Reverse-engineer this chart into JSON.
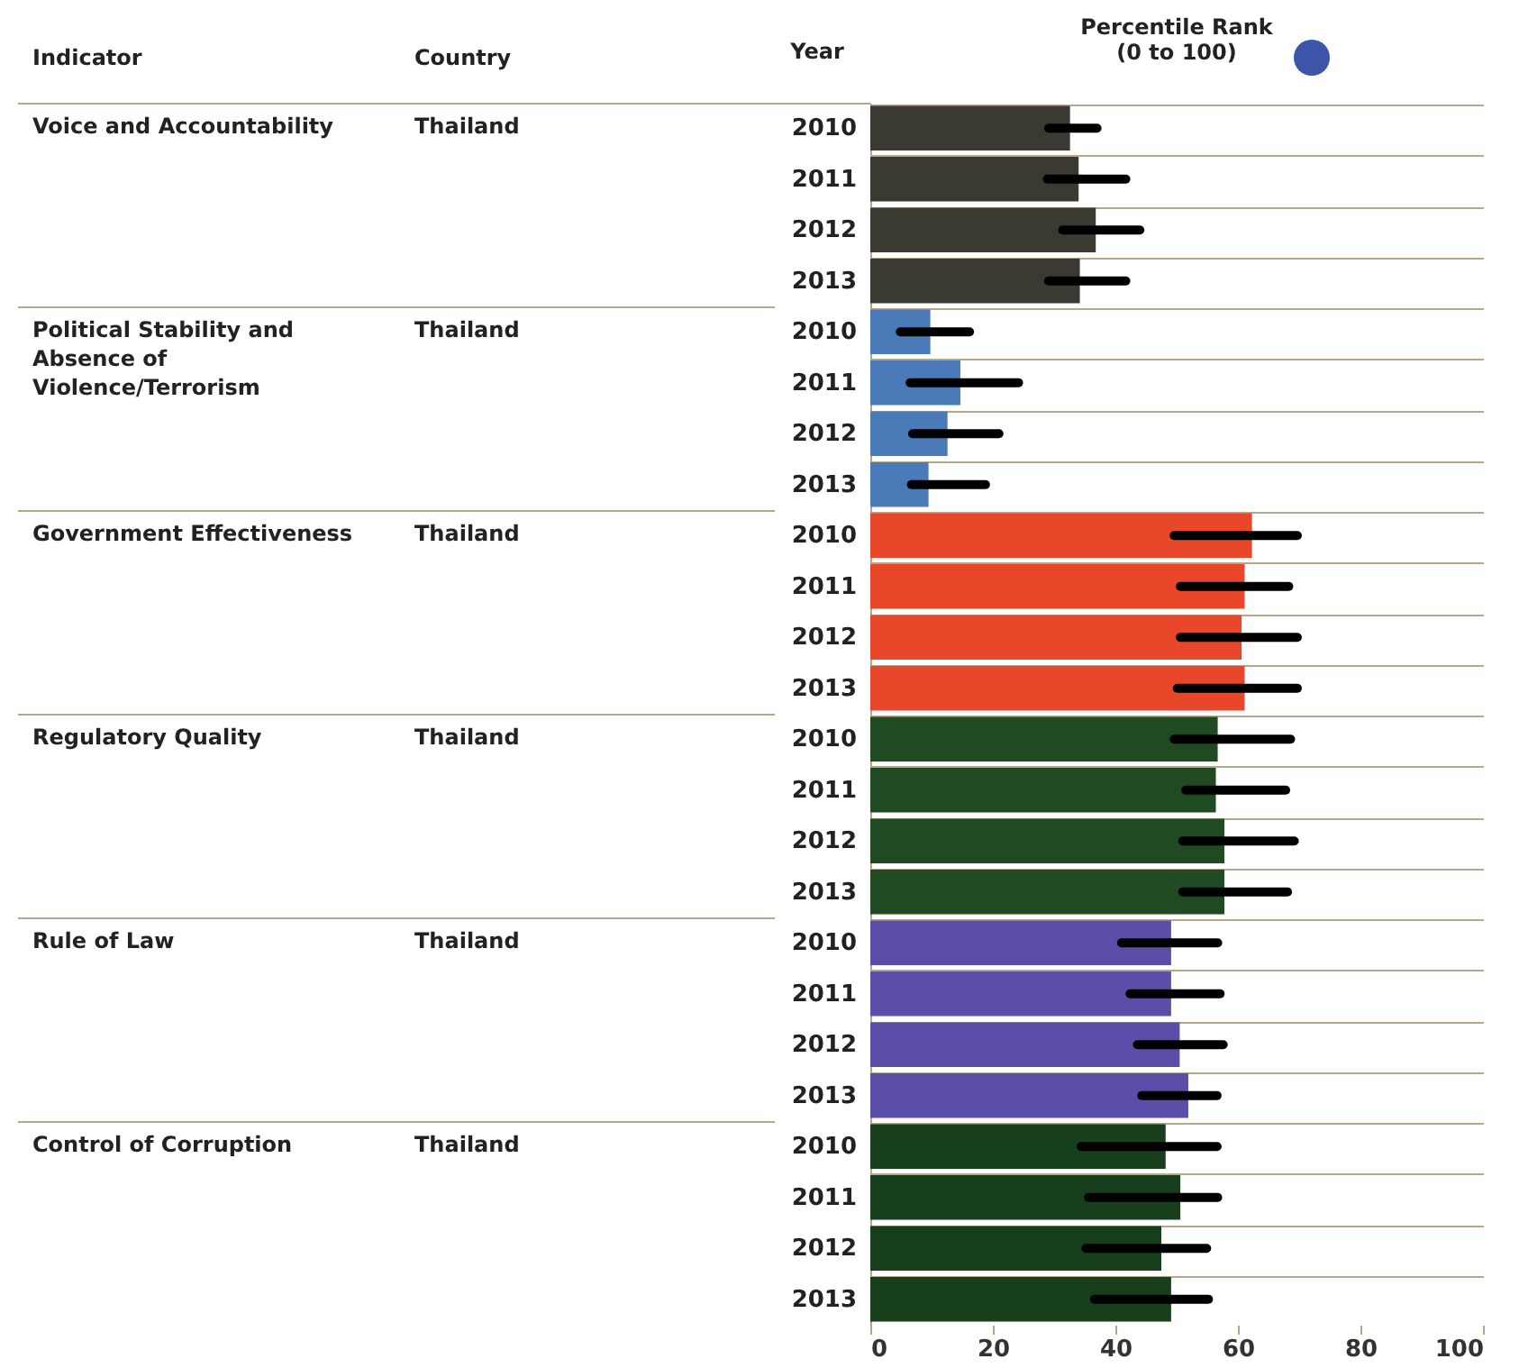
{
  "chart_data": {
    "type": "bar",
    "orientation": "horizontal",
    "xlabel": "Percentile Rank\n(0 to 100)",
    "ylabel": "Year",
    "categories": [
      "2010",
      "2011",
      "2012",
      "2013",
      "2010",
      "2011",
      "2012",
      "2013",
      "2010",
      "2011",
      "2012",
      "2013",
      "2010",
      "2011",
      "2012",
      "2013",
      "2010",
      "2011",
      "2012",
      "2013",
      "2010",
      "2011",
      "2012",
      "2013"
    ],
    "values": [
      32.6,
      34.0,
      36.8,
      34.2,
      9.8,
      14.7,
      12.6,
      9.5,
      62.3,
      61.1,
      60.6,
      61.1,
      56.7,
      56.4,
      57.8,
      57.8,
      49.1,
      49.1,
      50.5,
      51.9,
      48.2,
      50.6,
      47.5,
      49.1
    ],
    "errors": [
      [
        29.1,
        37.0
      ],
      [
        28.9,
        41.7
      ],
      [
        31.4,
        44.0
      ],
      [
        29.1,
        41.7
      ],
      [
        4.9,
        16.2
      ],
      [
        6.5,
        24.2
      ],
      [
        6.9,
        21.0
      ],
      [
        6.7,
        18.8
      ],
      [
        49.6,
        69.7
      ],
      [
        50.6,
        68.3
      ],
      [
        50.6,
        69.7
      ],
      [
        50.1,
        69.7
      ],
      [
        49.6,
        68.6
      ],
      [
        51.5,
        67.8
      ],
      [
        51.0,
        69.2
      ],
      [
        51.0,
        68.1
      ],
      [
        41.0,
        56.7
      ],
      [
        42.4,
        57.1
      ],
      [
        43.6,
        57.6
      ],
      [
        44.3,
        56.6
      ],
      [
        34.4,
        56.6
      ],
      [
        35.6,
        56.7
      ],
      [
        35.2,
        54.9
      ],
      [
        36.6,
        55.2
      ]
    ],
    "colors": [
      "#3a3a32",
      "#3a3a32",
      "#3a3a32",
      "#3a3a32",
      "#4a7ab8",
      "#4a7ab8",
      "#4a7ab8",
      "#4a7ab8",
      "#e8472a",
      "#e8472a",
      "#e8472a",
      "#e8472a",
      "#1f4a22",
      "#1f4a22",
      "#1f4a22",
      "#1f4a22",
      "#5b4ea8",
      "#5b4ea8",
      "#5b4ea8",
      "#5b4ea8",
      "#173f1c",
      "#173f1c",
      "#173f1c",
      "#173f1c"
    ],
    "xlim": [
      0,
      100
    ],
    "xticks": [
      0,
      20,
      40,
      60,
      80,
      100
    ],
    "grid": "y",
    "annotations": [
      "Indicator",
      "Country",
      "Voice and Accountability",
      "Thailand",
      "Political Stability and Absence of Violence/Terrorism",
      "Thailand",
      "Government Effectiveness",
      "Thailand",
      "Regulatory Quality",
      "Thailand",
      "Rule of Law",
      "Thailand",
      "Control of Corruption",
      "Thailand"
    ]
  }
}
